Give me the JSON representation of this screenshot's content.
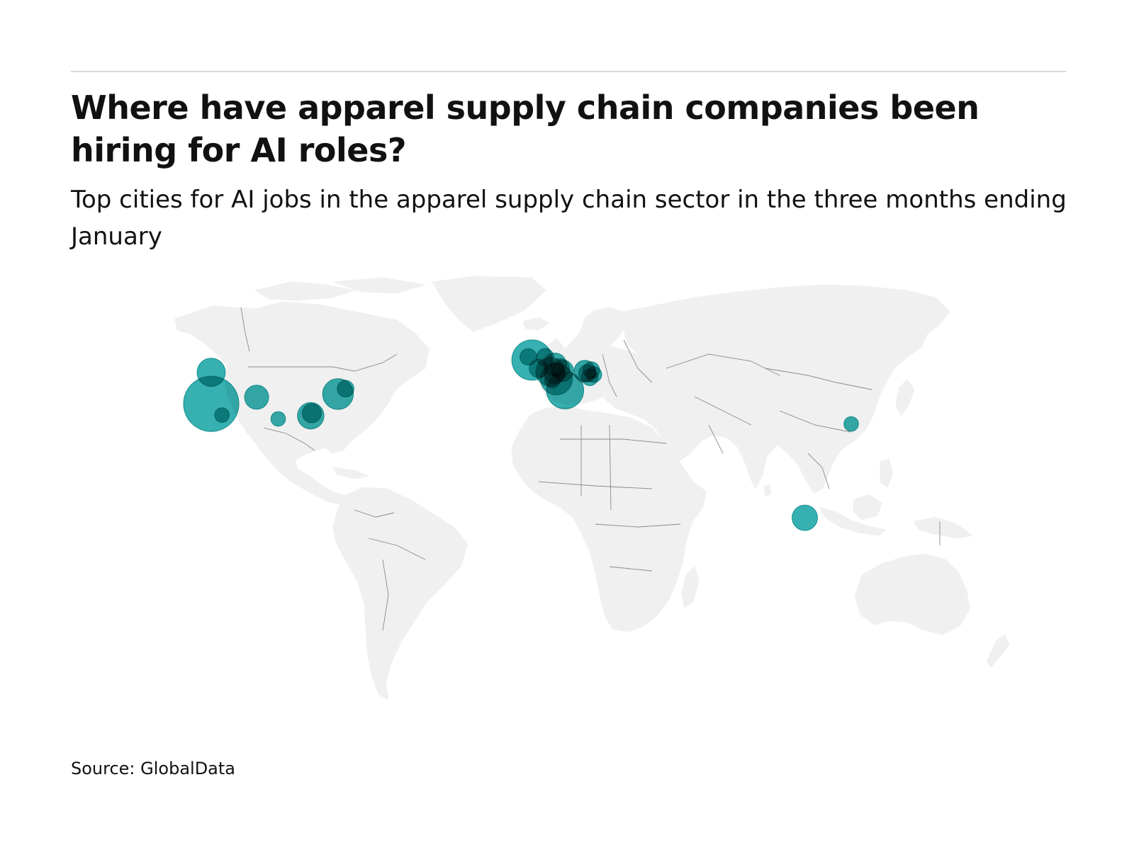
{
  "header": {
    "title": "Where have apparel supply chain companies been hiring for AI roles?",
    "subtitle": "Top cities for AI jobs in the apparel supply chain sector in the three months ending January"
  },
  "footer": {
    "source": "Source: GlobalData"
  },
  "colors": {
    "land": "#f0f0f0",
    "border": "#8a8a8a",
    "bubble": "#1aa5a5",
    "bubble_outline": "#168f8f",
    "rule": "#d9d9d9"
  },
  "chart_data": {
    "type": "bubble-map",
    "size_metric": "relative number of AI job postings (unlabeled)",
    "points": [
      {
        "lon": -122.3,
        "lat": 37.6,
        "size": 100
      },
      {
        "lon": -122.3,
        "lat": 47.6,
        "size": 26
      },
      {
        "lon": -118.2,
        "lat": 34.0,
        "size": 7
      },
      {
        "lon": -105.0,
        "lat": 39.7,
        "size": 19
      },
      {
        "lon": -96.8,
        "lat": 32.8,
        "size": 7
      },
      {
        "lon": -74.0,
        "lat": 40.7,
        "size": 31
      },
      {
        "lon": -71.1,
        "lat": 42.4,
        "size": 9
      },
      {
        "lon": -84.4,
        "lat": 33.8,
        "size": 23
      },
      {
        "lon": -84.0,
        "lat": 34.6,
        "size": 12
      },
      {
        "lon": -0.1,
        "lat": 51.5,
        "size": 53
      },
      {
        "lon": -1.5,
        "lat": 52.5,
        "size": 9
      },
      {
        "lon": 2.35,
        "lat": 48.85,
        "size": 11
      },
      {
        "lon": 4.9,
        "lat": 52.4,
        "size": 10
      },
      {
        "lon": 8.7,
        "lat": 50.1,
        "size": 17
      },
      {
        "lon": 6.8,
        "lat": 47.8,
        "size": 27
      },
      {
        "lon": 8.6,
        "lat": 47.3,
        "size": 14
      },
      {
        "lon": 9.2,
        "lat": 45.5,
        "size": 33
      },
      {
        "lon": 10.5,
        "lat": 48.9,
        "size": 12
      },
      {
        "lon": 11.6,
        "lat": 48.1,
        "size": 15
      },
      {
        "lon": 7.7,
        "lat": 45.1,
        "size": 8
      },
      {
        "lon": 12.5,
        "lat": 41.9,
        "size": 45
      },
      {
        "lon": 20.0,
        "lat": 48.0,
        "size": 15
      },
      {
        "lon": 21.0,
        "lat": 47.3,
        "size": 10
      },
      {
        "lon": 22.5,
        "lat": 48.3,
        "size": 9
      },
      {
        "lon": 21.9,
        "lat": 46.0,
        "size": 9
      },
      {
        "lon": 23.5,
        "lat": 46.9,
        "size": 8
      },
      {
        "lon": 121.5,
        "lat": 31.2,
        "size": 7
      },
      {
        "lon": 103.8,
        "lat": 1.35,
        "size": 21
      }
    ]
  }
}
